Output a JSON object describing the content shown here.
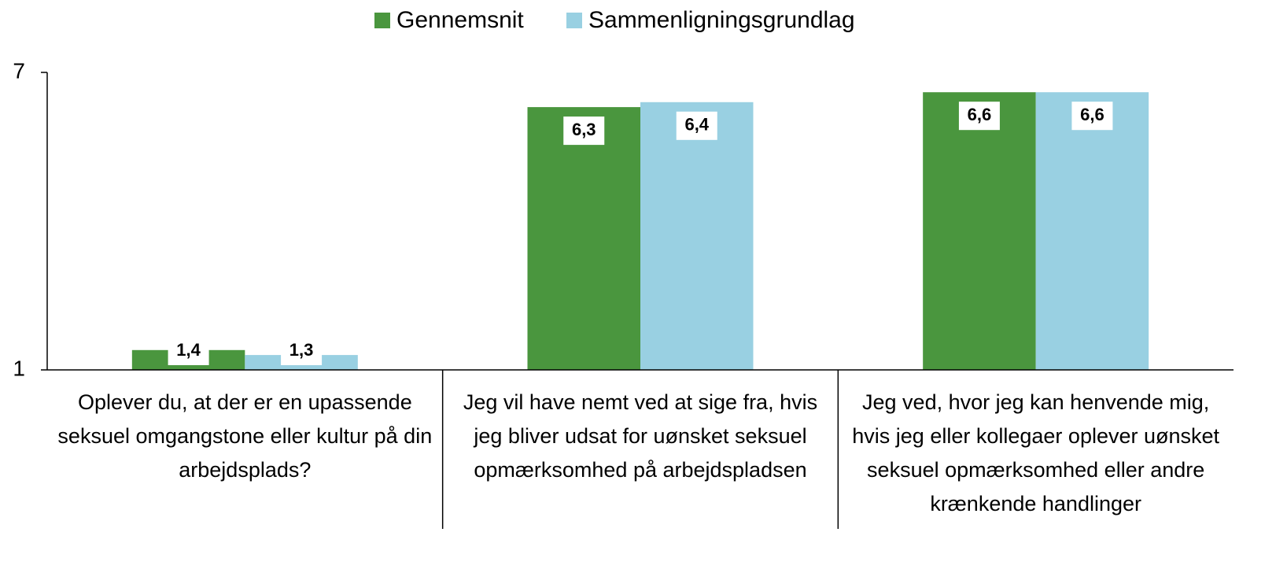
{
  "chart_data": {
    "type": "bar",
    "categories": [
      "Oplever du, at der er en upassende seksuel omgangstone eller kultur på din arbejdsplads?",
      "Jeg vil have nemt ved at sige fra, hvis jeg bliver udsat for uønsket seksuel opmærksomhed på arbejdspladsen",
      "Jeg ved, hvor jeg kan henvende mig, hvis jeg eller kollegaer oplever uønsket seksuel opmærksomhed eller andre krænkende handlinger"
    ],
    "series": [
      {
        "name": "Gennemsnit",
        "color": "#4a963e",
        "values": [
          1.4,
          6.3,
          6.6
        ],
        "value_labels": [
          "1,4",
          "6,3",
          "6,6"
        ]
      },
      {
        "name": "Sammenligningsgrundlag",
        "color": "#99d0e2",
        "values": [
          1.3,
          6.4,
          6.6
        ],
        "value_labels": [
          "1,3",
          "6,4",
          "6,6"
        ]
      }
    ],
    "ylim": [
      1,
      7
    ],
    "yticks": [
      1,
      7
    ],
    "legend": "top"
  }
}
